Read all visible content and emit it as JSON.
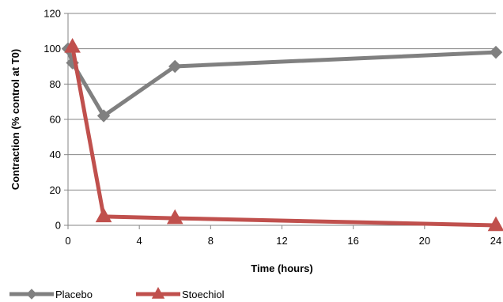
{
  "chart_data": {
    "type": "line",
    "title": "",
    "xlabel": "Time (hours)",
    "ylabel": "Contraction (% control at T0)",
    "xlim": [
      0,
      24
    ],
    "ylim": [
      0,
      120
    ],
    "x_ticks": [
      "0",
      "4",
      "8",
      "12",
      "16",
      "20",
      "24"
    ],
    "y_ticks": [
      "0",
      "20",
      "40",
      "60",
      "80",
      "100",
      "120"
    ],
    "grid": "horizontal",
    "legend_position": "bottom-left",
    "series": [
      {
        "name": "Placebo",
        "color": "#808080",
        "marker": "diamond",
        "x": [
          0,
          0.25,
          2,
          6,
          24
        ],
        "y": [
          100,
          92,
          62,
          90,
          98
        ]
      },
      {
        "name": "Stoechiol",
        "color": "#c0504d",
        "marker": "triangle",
        "x": [
          0.25,
          2,
          6,
          24
        ],
        "y": [
          101,
          5,
          4,
          0
        ]
      }
    ]
  }
}
